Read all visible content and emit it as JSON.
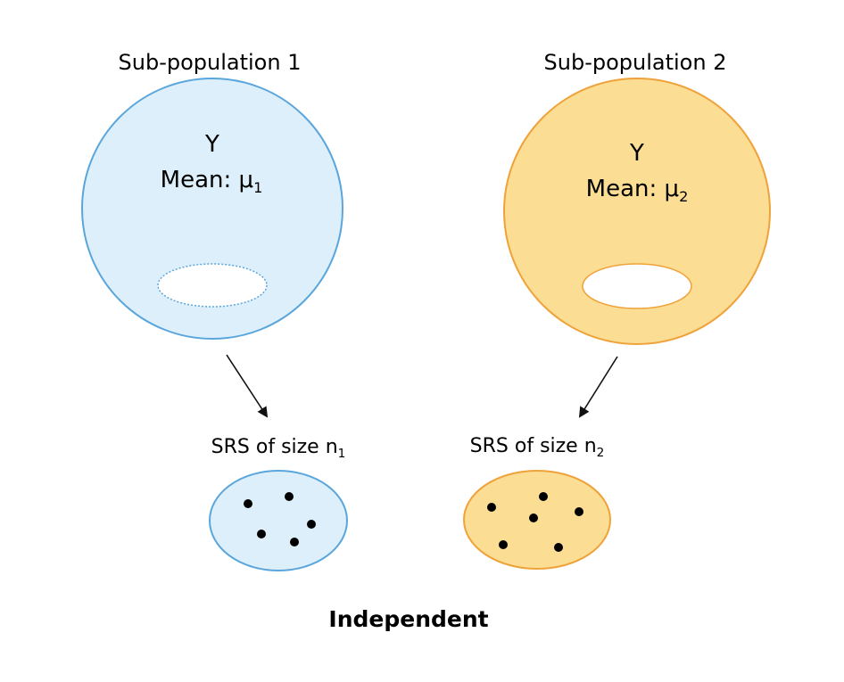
{
  "colors": {
    "blue_fill": "#ddeffa",
    "blue_stroke": "#5aa6dc",
    "orange_fill": "#fbdd94",
    "orange_stroke": "#f0a23a",
    "arrow": "#111111",
    "dot": "#000000"
  },
  "subpop1": {
    "label": "Sub-population 1",
    "variable": "Y",
    "mean_prefix": "Mean: μ",
    "mean_sub": "1"
  },
  "subpop2": {
    "label": "Sub-population 2",
    "variable": "Y",
    "mean_prefix": "Mean: μ",
    "mean_sub": "2"
  },
  "sample1": {
    "label_prefix": "SRS of size n",
    "label_sub": "1"
  },
  "sample2": {
    "label_prefix": "SRS of size n",
    "label_sub": "2"
  },
  "footer": {
    "label": "Independent"
  }
}
